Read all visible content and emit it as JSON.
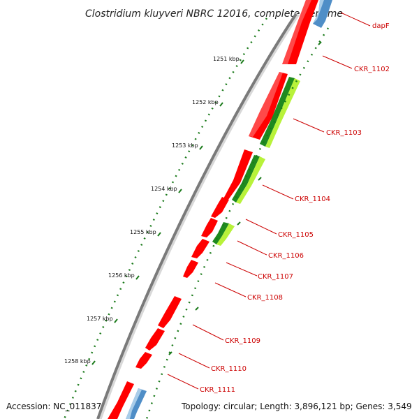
{
  "title": "Clostridium kluyveri NBRC 12016, complete genome",
  "accession": "Accession: NC_011837",
  "stats": "Topology: circular; Length: 3,896,121 bp; Genes: 3,549",
  "ruler_labels": [
    "1251 kbp",
    "1252 kbp",
    "1253 kbp",
    "1254 kbp",
    "1255 kbp",
    "1256 kbp",
    "1257 kbp",
    "1258 kbp"
  ],
  "gene_labels": [
    "dapF",
    "CKR_1102",
    "CKR_1103",
    "CKR_1104",
    "CKR_1105",
    "CKR_1106",
    "CKR_1107",
    "CKR_1108",
    "CKR_1109",
    "CKR_1110",
    "CKR_1111"
  ],
  "colors": {
    "forward_gene": "#ff0000",
    "reverse_gene": "#ff0000",
    "dark_feature": "#1f8a1f",
    "light_feature": "#b8f23a",
    "blue_feature": "#4f8ec7",
    "backbone": "#7a7a7a",
    "tick": "#1a7a1a",
    "label": "#cc0000"
  }
}
